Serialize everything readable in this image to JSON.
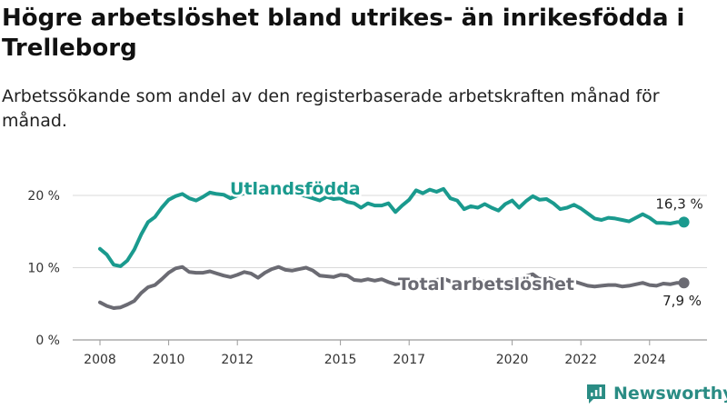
{
  "header": {
    "title": "Högre arbetslöshet bland utrikes- än inrikesfödda i Trelleborg",
    "subtitle": "Arbetssökande som andel av den registerbaserade arbetskraften månad för månad."
  },
  "brand": {
    "name": "Newsworthy",
    "color": "#2a8c84"
  },
  "chart_data": {
    "type": "line",
    "ylim": [
      0,
      20
    ],
    "y_ticks": [
      0,
      10,
      20
    ],
    "y_tick_labels": [
      "0 %",
      "10 %",
      "20 %"
    ],
    "x_range": [
      2008.0,
      2025.25
    ],
    "x_ticks": [
      2008,
      2010,
      2012,
      2015,
      2017,
      2020,
      2022,
      2024
    ],
    "x_tick_labels": [
      "2008",
      "2010",
      "2012",
      "2015",
      "2017",
      "2020",
      "2022",
      "2024"
    ],
    "grid": "horizontal",
    "legend": "inline",
    "series": [
      {
        "name": "Utlandsfödda",
        "color": "#1a9a8e",
        "end_label": "16,3 %",
        "points": [
          [
            2008.0,
            12.6
          ],
          [
            2008.2,
            11.8
          ],
          [
            2008.4,
            10.4
          ],
          [
            2008.6,
            10.2
          ],
          [
            2008.8,
            11.0
          ],
          [
            2009.0,
            12.5
          ],
          [
            2009.2,
            14.6
          ],
          [
            2009.4,
            16.3
          ],
          [
            2009.6,
            17.0
          ],
          [
            2009.8,
            18.3
          ],
          [
            2010.0,
            19.4
          ],
          [
            2010.2,
            19.9
          ],
          [
            2010.4,
            20.2
          ],
          [
            2010.6,
            19.6
          ],
          [
            2010.8,
            19.3
          ],
          [
            2011.0,
            19.8
          ],
          [
            2011.2,
            20.4
          ],
          [
            2011.4,
            20.2
          ],
          [
            2011.6,
            20.1
          ],
          [
            2011.8,
            19.6
          ],
          [
            2012.0,
            20.0
          ],
          [
            2012.2,
            20.3
          ],
          [
            2012.4,
            20.6
          ],
          [
            2012.6,
            20.3
          ],
          [
            2012.8,
            20.5
          ],
          [
            2013.0,
            20.6
          ],
          [
            2013.2,
            20.3
          ],
          [
            2013.4,
            20.7
          ],
          [
            2013.6,
            20.4
          ],
          [
            2013.8,
            20.1
          ],
          [
            2014.0,
            19.9
          ],
          [
            2014.2,
            19.6
          ],
          [
            2014.4,
            19.3
          ],
          [
            2014.6,
            19.8
          ],
          [
            2014.8,
            19.5
          ],
          [
            2015.0,
            19.6
          ],
          [
            2015.2,
            19.1
          ],
          [
            2015.4,
            18.9
          ],
          [
            2015.6,
            18.3
          ],
          [
            2015.8,
            18.9
          ],
          [
            2016.0,
            18.6
          ],
          [
            2016.2,
            18.6
          ],
          [
            2016.4,
            18.9
          ],
          [
            2016.6,
            17.7
          ],
          [
            2016.8,
            18.6
          ],
          [
            2017.0,
            19.4
          ],
          [
            2017.2,
            20.7
          ],
          [
            2017.4,
            20.3
          ],
          [
            2017.6,
            20.8
          ],
          [
            2017.8,
            20.5
          ],
          [
            2018.0,
            20.9
          ],
          [
            2018.2,
            19.6
          ],
          [
            2018.4,
            19.3
          ],
          [
            2018.6,
            18.1
          ],
          [
            2018.8,
            18.5
          ],
          [
            2019.0,
            18.3
          ],
          [
            2019.2,
            18.8
          ],
          [
            2019.4,
            18.3
          ],
          [
            2019.6,
            17.9
          ],
          [
            2019.8,
            18.8
          ],
          [
            2020.0,
            19.3
          ],
          [
            2020.2,
            18.3
          ],
          [
            2020.4,
            19.2
          ],
          [
            2020.6,
            19.9
          ],
          [
            2020.8,
            19.4
          ],
          [
            2021.0,
            19.5
          ],
          [
            2021.2,
            18.9
          ],
          [
            2021.4,
            18.1
          ],
          [
            2021.6,
            18.3
          ],
          [
            2021.8,
            18.7
          ],
          [
            2022.0,
            18.2
          ],
          [
            2022.2,
            17.5
          ],
          [
            2022.4,
            16.8
          ],
          [
            2022.6,
            16.6
          ],
          [
            2022.8,
            16.9
          ],
          [
            2023.0,
            16.8
          ],
          [
            2023.2,
            16.6
          ],
          [
            2023.4,
            16.4
          ],
          [
            2023.6,
            16.9
          ],
          [
            2023.8,
            17.4
          ],
          [
            2024.0,
            16.9
          ],
          [
            2024.2,
            16.2
          ],
          [
            2024.4,
            16.2
          ],
          [
            2024.6,
            16.1
          ],
          [
            2024.8,
            16.3
          ],
          [
            2025.0,
            16.3
          ]
        ]
      },
      {
        "name": "Total arbetslöshet",
        "color": "#6b6b73",
        "end_label": "7,9 %",
        "points": [
          [
            2008.0,
            5.2
          ],
          [
            2008.2,
            4.7
          ],
          [
            2008.4,
            4.4
          ],
          [
            2008.6,
            4.5
          ],
          [
            2008.8,
            4.9
          ],
          [
            2009.0,
            5.4
          ],
          [
            2009.2,
            6.5
          ],
          [
            2009.4,
            7.3
          ],
          [
            2009.6,
            7.6
          ],
          [
            2009.8,
            8.4
          ],
          [
            2010.0,
            9.3
          ],
          [
            2010.2,
            9.9
          ],
          [
            2010.4,
            10.1
          ],
          [
            2010.6,
            9.4
          ],
          [
            2010.8,
            9.3
          ],
          [
            2011.0,
            9.3
          ],
          [
            2011.2,
            9.5
          ],
          [
            2011.4,
            9.2
          ],
          [
            2011.6,
            8.9
          ],
          [
            2011.8,
            8.7
          ],
          [
            2012.0,
            9.0
          ],
          [
            2012.2,
            9.4
          ],
          [
            2012.4,
            9.2
          ],
          [
            2012.6,
            8.6
          ],
          [
            2012.8,
            9.3
          ],
          [
            2013.0,
            9.8
          ],
          [
            2013.2,
            10.1
          ],
          [
            2013.4,
            9.7
          ],
          [
            2013.6,
            9.6
          ],
          [
            2013.8,
            9.8
          ],
          [
            2014.0,
            10.0
          ],
          [
            2014.2,
            9.6
          ],
          [
            2014.4,
            8.9
          ],
          [
            2014.6,
            8.8
          ],
          [
            2014.8,
            8.7
          ],
          [
            2015.0,
            9.0
          ],
          [
            2015.2,
            8.9
          ],
          [
            2015.4,
            8.3
          ],
          [
            2015.6,
            8.2
          ],
          [
            2015.8,
            8.4
          ],
          [
            2016.0,
            8.2
          ],
          [
            2016.2,
            8.4
          ],
          [
            2016.4,
            8.0
          ],
          [
            2016.6,
            7.7
          ],
          [
            2016.8,
            7.9
          ],
          [
            2017.0,
            7.8
          ],
          [
            2017.2,
            8.2
          ],
          [
            2017.4,
            8.3
          ],
          [
            2017.6,
            8.0
          ],
          [
            2017.8,
            8.3
          ],
          [
            2018.0,
            8.5
          ],
          [
            2018.2,
            8.1
          ],
          [
            2018.4,
            8.2
          ],
          [
            2018.6,
            8.0
          ],
          [
            2018.8,
            8.3
          ],
          [
            2019.0,
            8.4
          ],
          [
            2019.2,
            8.0
          ],
          [
            2019.4,
            8.1
          ],
          [
            2019.6,
            7.9
          ],
          [
            2019.8,
            8.2
          ],
          [
            2020.0,
            8.3
          ],
          [
            2020.2,
            8.3
          ],
          [
            2020.4,
            8.8
          ],
          [
            2020.6,
            9.1
          ],
          [
            2020.8,
            8.4
          ],
          [
            2021.0,
            8.7
          ],
          [
            2021.2,
            8.3
          ],
          [
            2021.4,
            8.0
          ],
          [
            2021.6,
            8.2
          ],
          [
            2021.8,
            8.1
          ],
          [
            2022.0,
            7.8
          ],
          [
            2022.2,
            7.5
          ],
          [
            2022.4,
            7.4
          ],
          [
            2022.6,
            7.5
          ],
          [
            2022.8,
            7.6
          ],
          [
            2023.0,
            7.6
          ],
          [
            2023.2,
            7.4
          ],
          [
            2023.4,
            7.5
          ],
          [
            2023.6,
            7.7
          ],
          [
            2023.8,
            7.9
          ],
          [
            2024.0,
            7.6
          ],
          [
            2024.2,
            7.5
          ],
          [
            2024.4,
            7.8
          ],
          [
            2024.6,
            7.7
          ],
          [
            2024.8,
            7.9
          ],
          [
            2025.0,
            7.9
          ]
        ]
      }
    ]
  }
}
